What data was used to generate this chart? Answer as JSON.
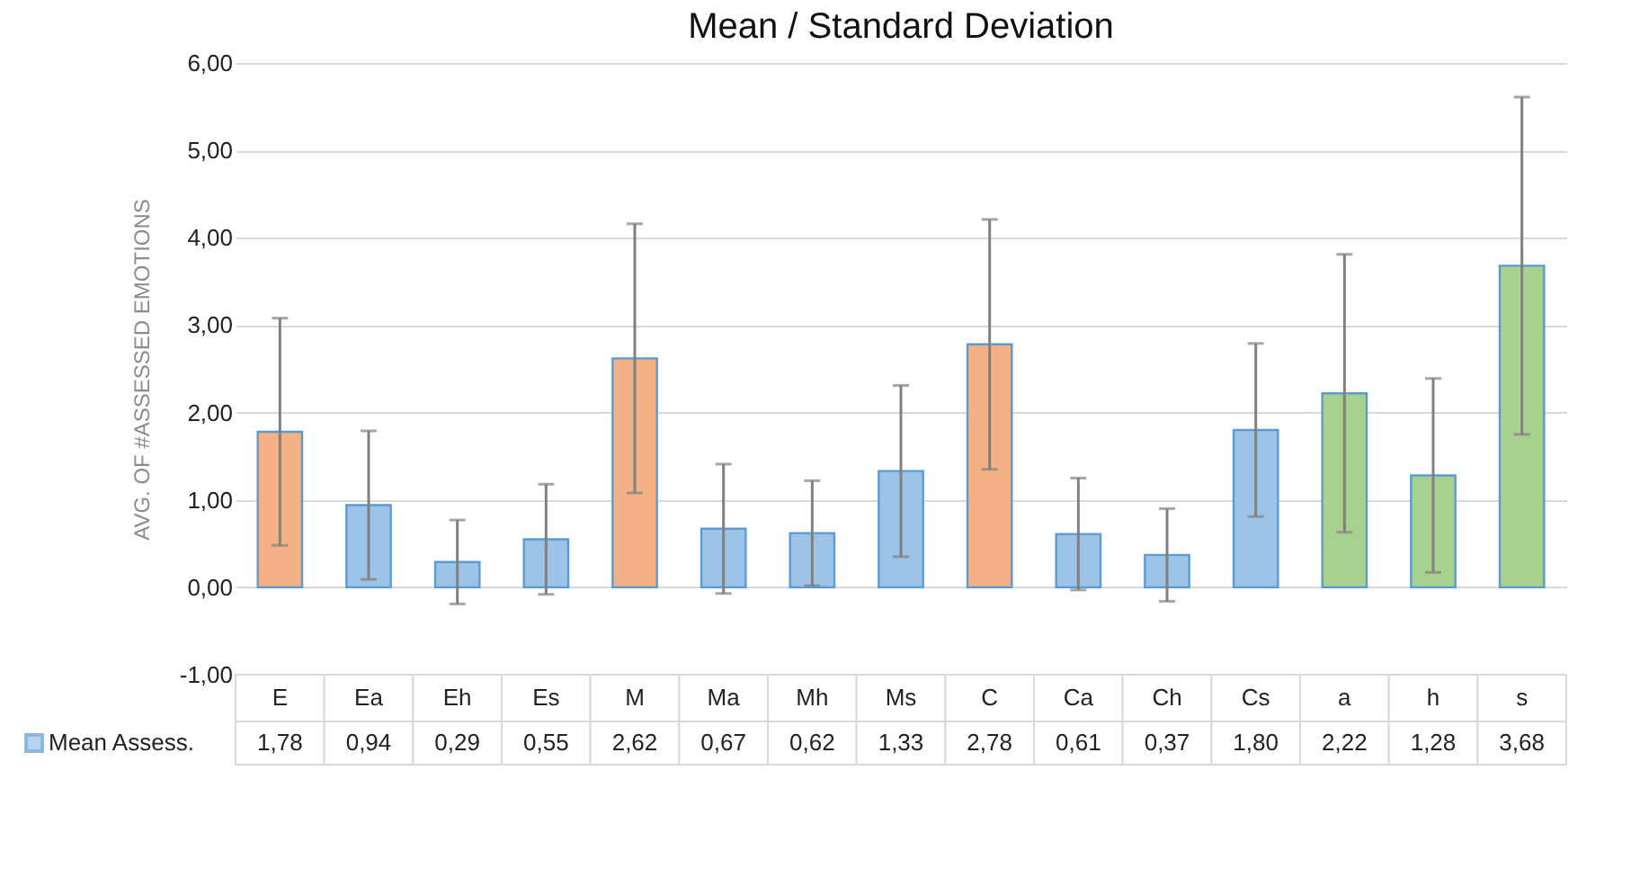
{
  "chart_data": {
    "type": "bar",
    "title": "Mean / Standard Deviation",
    "ylabel": "AVG. OF #ASSESSED EMOTIONS",
    "categories": [
      "E",
      "Ea",
      "Eh",
      "Es",
      "M",
      "Ma",
      "Mh",
      "Ms",
      "C",
      "Ca",
      "Ch",
      "Cs",
      "a",
      "h",
      "s"
    ],
    "series": [
      {
        "name": "Mean Assess.",
        "color": "#9dc3e6",
        "colors": [
          "#f4b183",
          "#9dc3e6",
          "#9dc3e6",
          "#9dc3e6",
          "#f4b183",
          "#9dc3e6",
          "#9dc3e6",
          "#9dc3e6",
          "#f4b183",
          "#9dc3e6",
          "#9dc3e6",
          "#9dc3e6",
          "#a9d18e",
          "#a9d18e",
          "#a9d18e"
        ],
        "values": [
          1.78,
          0.94,
          0.29,
          0.55,
          2.62,
          0.67,
          0.62,
          1.33,
          2.78,
          0.61,
          0.37,
          1.8,
          2.22,
          1.28,
          3.68
        ],
        "errors": [
          1.3,
          0.85,
          0.48,
          0.63,
          1.54,
          0.74,
          0.6,
          0.98,
          1.43,
          0.64,
          0.53,
          0.99,
          1.59,
          1.11,
          1.93
        ],
        "value_labels": [
          "1,78",
          "0,94",
          "0,29",
          "0,55",
          "2,62",
          "0,67",
          "0,62",
          "1,33",
          "2,78",
          "0,61",
          "0,37",
          "1,80",
          "2,22",
          "1,28",
          "3,68"
        ]
      }
    ],
    "ylim": [
      -1,
      6
    ],
    "yticks": [
      {
        "value": -1,
        "label": "-1,00"
      },
      {
        "value": 0,
        "label": "0,00"
      },
      {
        "value": 1,
        "label": "1,00"
      },
      {
        "value": 2,
        "label": "2,00"
      },
      {
        "value": 3,
        "label": "3,00"
      },
      {
        "value": 4,
        "label": "4,00"
      },
      {
        "value": 5,
        "label": "5,00"
      },
      {
        "value": 6,
        "label": "6,00"
      }
    ],
    "grid": "y",
    "legend": "bottom left"
  }
}
